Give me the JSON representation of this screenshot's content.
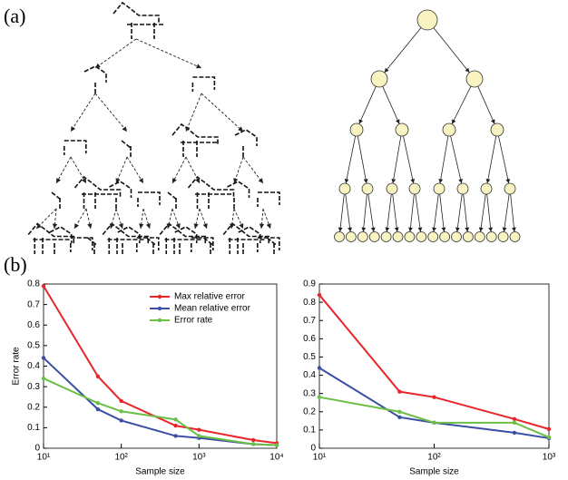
{
  "panel_labels": [
    "(a)",
    "(b)"
  ],
  "chart_data": [
    {
      "type": "line",
      "xlabel": "Sample size",
      "ylabel": "Error rate",
      "xscale": "log",
      "x": [
        10,
        50,
        100,
        500,
        1000,
        5000,
        10000
      ],
      "xlim": [
        10,
        10000
      ],
      "xticks": [
        {
          "value": 10,
          "label": "10¹"
        },
        {
          "value": 100,
          "label": "10²"
        },
        {
          "value": 1000,
          "label": "10³"
        },
        {
          "value": 10000,
          "label": "10⁴"
        }
      ],
      "ylim": [
        0,
        0.8
      ],
      "yticks": [
        0,
        0.1,
        0.2,
        0.3,
        0.4,
        0.5,
        0.6,
        0.7,
        0.8
      ],
      "legend": "upper right",
      "series": [
        {
          "name": "Max relative error",
          "color": "#e8262a",
          "values": [
            0.79,
            0.35,
            0.23,
            0.11,
            0.09,
            0.04,
            0.025
          ]
        },
        {
          "name": "Mean relative error",
          "color": "#3a4fa3",
          "values": [
            0.44,
            0.19,
            0.135,
            0.06,
            0.05,
            0.02,
            0.015
          ]
        },
        {
          "name": "Error rate",
          "color": "#6cbf45",
          "values": [
            0.34,
            0.22,
            0.18,
            0.14,
            0.06,
            0.02,
            0.015
          ]
        }
      ]
    },
    {
      "type": "line",
      "xlabel": "Sample size",
      "xscale": "log",
      "x": [
        10,
        50,
        100,
        500,
        1000
      ],
      "xlim": [
        10,
        1000
      ],
      "xticks": [
        {
          "value": 10,
          "label": "10¹"
        },
        {
          "value": 100,
          "label": "10²"
        },
        {
          "value": 1000,
          "label": "10³"
        }
      ],
      "ylim": [
        0,
        0.9
      ],
      "yticks": [
        0,
        0.1,
        0.2,
        0.3,
        0.4,
        0.5,
        0.6,
        0.7,
        0.8,
        0.9
      ],
      "series": [
        {
          "color": "#e8262a",
          "values": [
            0.84,
            0.31,
            0.28,
            0.16,
            0.105
          ]
        },
        {
          "color": "#3a4fa3",
          "values": [
            0.44,
            0.17,
            0.14,
            0.085,
            0.055
          ]
        },
        {
          "color": "#6cbf45",
          "values": [
            0.28,
            0.2,
            0.14,
            0.14,
            0.06
          ]
        }
      ]
    }
  ]
}
